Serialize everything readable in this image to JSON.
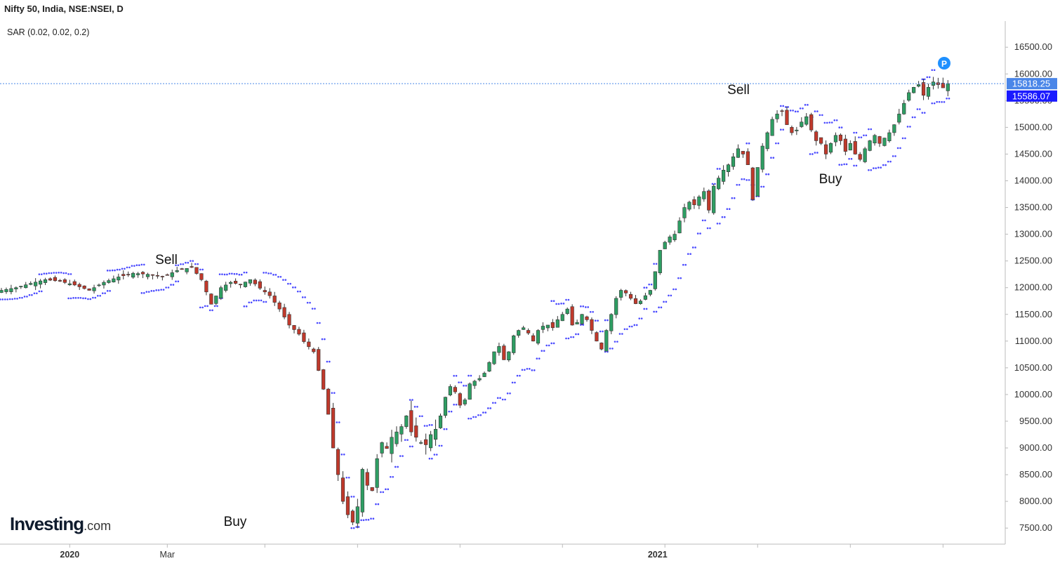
{
  "header": {
    "title": "Nifty 50, India, NSE:NSEI, D",
    "indicator": "SAR (0.02, 0.02, 0.2)"
  },
  "logo": {
    "text": "Investing",
    "suffix": ".com"
  },
  "colors": {
    "up_candle": "#2e9e63",
    "down_candle": "#c0392b",
    "sar_dots": "#4a4aff",
    "price_label_bg": "#4a86e8",
    "sar_label_bg": "#1a1aff",
    "p_badge": "#1e90ff",
    "grid": "#e6e6e6",
    "axis": "#bbbbbb"
  },
  "chart_data": {
    "type": "candlestick",
    "title": "Nifty 50, India, NSE:NSEI, D",
    "indicator": "SAR (0.02, 0.02, 0.2)",
    "ylim": [
      7200,
      16950
    ],
    "yticks": [
      "7500.00",
      "8000.00",
      "8500.00",
      "9000.00",
      "9500.00",
      "10000.00",
      "10500.00",
      "11000.00",
      "11500.00",
      "12000.00",
      "12500.00",
      "13000.00",
      "13500.00",
      "14000.00",
      "14500.00",
      "15000.00",
      "15500.00",
      "16000.00",
      "16500.00"
    ],
    "x_labels": [
      "2020",
      "Mar",
      "2021"
    ],
    "last_price": "15818.25",
    "last_sar": "15586.07",
    "p_badge": "P",
    "annotations": [
      {
        "text": "Sell"
      },
      {
        "text": "Buy"
      },
      {
        "text": "Sell"
      },
      {
        "text": "Buy"
      }
    ],
    "close_path": [
      [
        0,
        11950
      ],
      [
        3,
        12000
      ],
      [
        6,
        12080
      ],
      [
        9,
        12150
      ],
      [
        12,
        12120
      ],
      [
        15,
        12050
      ],
      [
        18,
        11950
      ],
      [
        21,
        12100
      ],
      [
        24,
        12200
      ],
      [
        27,
        12270
      ],
      [
        30,
        12250
      ],
      [
        33,
        12200
      ],
      [
        36,
        12320
      ],
      [
        39,
        12380
      ],
      [
        41,
        12150
      ],
      [
        43,
        11690
      ],
      [
        45,
        12000
      ],
      [
        47,
        12100
      ],
      [
        49,
        12060
      ],
      [
        51,
        12150
      ],
      [
        53,
        11990
      ],
      [
        55,
        11850
      ],
      [
        57,
        11600
      ],
      [
        59,
        11300
      ],
      [
        61,
        11130
      ],
      [
        62,
        10990
      ],
      [
        64,
        10800
      ],
      [
        65,
        10450
      ],
      [
        66,
        10100
      ],
      [
        67,
        9630
      ],
      [
        68,
        9000
      ],
      [
        69,
        8500
      ],
      [
        70,
        8000
      ],
      [
        71,
        7750
      ],
      [
        72,
        7610
      ],
      [
        73,
        7900
      ],
      [
        74,
        8600
      ],
      [
        75,
        8300
      ],
      [
        76,
        8200
      ],
      [
        77,
        8800
      ],
      [
        78,
        9100
      ],
      [
        79,
        8990
      ],
      [
        80,
        9200
      ],
      [
        81,
        9300
      ],
      [
        82,
        9400
      ],
      [
        83,
        9600
      ],
      [
        84,
        9300
      ],
      [
        85,
        9200
      ],
      [
        86,
        9100
      ],
      [
        87,
        9060
      ],
      [
        88,
        9250
      ],
      [
        89,
        9350
      ],
      [
        90,
        9600
      ],
      [
        91,
        9950
      ],
      [
        92,
        10150
      ],
      [
        93,
        10050
      ],
      [
        94,
        9800
      ],
      [
        95,
        9900
      ],
      [
        96,
        10200
      ],
      [
        97,
        10250
      ],
      [
        98,
        10300
      ],
      [
        99,
        10400
      ],
      [
        100,
        10600
      ],
      [
        101,
        10800
      ],
      [
        102,
        10900
      ],
      [
        103,
        10650
      ],
      [
        104,
        10800
      ],
      [
        105,
        11100
      ],
      [
        106,
        11200
      ],
      [
        107,
        11250
      ],
      [
        108,
        11150
      ],
      [
        109,
        11000
      ],
      [
        110,
        11200
      ],
      [
        111,
        11280
      ],
      [
        112,
        11300
      ],
      [
        113,
        11250
      ],
      [
        114,
        11400
      ],
      [
        115,
        11500
      ],
      [
        116,
        11600
      ],
      [
        117,
        11300
      ],
      [
        118,
        11350
      ],
      [
        119,
        11500
      ],
      [
        120,
        11400
      ],
      [
        121,
        11200
      ],
      [
        122,
        11000
      ],
      [
        123,
        10850
      ],
      [
        124,
        11200
      ],
      [
        125,
        11500
      ],
      [
        126,
        11800
      ],
      [
        127,
        11950
      ],
      [
        128,
        11900
      ],
      [
        129,
        11800
      ],
      [
        130,
        11700
      ],
      [
        131,
        11750
      ],
      [
        132,
        11850
      ],
      [
        133,
        11950
      ],
      [
        134,
        12300
      ],
      [
        135,
        12700
      ],
      [
        136,
        12850
      ],
      [
        137,
        12950
      ],
      [
        138,
        13000
      ],
      [
        139,
        13250
      ],
      [
        140,
        13500
      ],
      [
        141,
        13600
      ],
      [
        142,
        13550
      ],
      [
        143,
        13700
      ],
      [
        144,
        13800
      ],
      [
        145,
        13450
      ],
      [
        146,
        13900
      ],
      [
        147,
        14050
      ],
      [
        148,
        14200
      ],
      [
        149,
        14300
      ],
      [
        150,
        14450
      ],
      [
        151,
        14600
      ],
      [
        152,
        14500
      ],
      [
        153,
        14300
      ],
      [
        154,
        13650
      ],
      [
        155,
        14250
      ],
      [
        156,
        14650
      ],
      [
        157,
        14900
      ],
      [
        158,
        15150
      ],
      [
        159,
        15250
      ],
      [
        160,
        15300
      ],
      [
        161,
        15050
      ],
      [
        162,
        14900
      ],
      [
        163,
        14950
      ],
      [
        164,
        15100
      ],
      [
        165,
        15200
      ],
      [
        166,
        14950
      ],
      [
        167,
        14750
      ],
      [
        168,
        14700
      ],
      [
        169,
        14500
      ],
      [
        170,
        14700
      ],
      [
        171,
        14850
      ],
      [
        172,
        14750
      ],
      [
        173,
        14550
      ],
      [
        174,
        14700
      ],
      [
        175,
        14500
      ],
      [
        176,
        14400
      ],
      [
        177,
        14600
      ],
      [
        178,
        14750
      ],
      [
        179,
        14850
      ],
      [
        180,
        14700
      ],
      [
        181,
        14800
      ],
      [
        182,
        14900
      ],
      [
        183,
        15050
      ],
      [
        184,
        15250
      ],
      [
        185,
        15450
      ],
      [
        186,
        15650
      ],
      [
        187,
        15750
      ],
      [
        188,
        15800
      ],
      [
        189,
        15600
      ],
      [
        190,
        15750
      ],
      [
        191,
        15850
      ],
      [
        192,
        15800
      ],
      [
        193,
        15740
      ],
      [
        194,
        15818
      ]
    ],
    "sar_segments": [
      {
        "trend": "up",
        "from": 0,
        "to": 8,
        "start": 11780
      },
      {
        "trend": "down",
        "from": 8,
        "to": 14,
        "start": 12250
      },
      {
        "trend": "up",
        "from": 14,
        "to": 22,
        "start": 11800
      },
      {
        "trend": "down",
        "from": 22,
        "to": 29,
        "start": 12320
      },
      {
        "trend": "up",
        "from": 29,
        "to": 36,
        "start": 11900
      },
      {
        "trend": "down",
        "from": 36,
        "to": 41,
        "start": 12420
      },
      {
        "trend": "up",
        "from": 41,
        "to": 45,
        "start": 11630
      },
      {
        "trend": "down",
        "from": 45,
        "to": 50,
        "start": 12250
      },
      {
        "trend": "up",
        "from": 50,
        "to": 54,
        "start": 11650
      },
      {
        "trend": "down",
        "from": 54,
        "to": 72,
        "start": 12280
      },
      {
        "trend": "up",
        "from": 72,
        "to": 84,
        "start": 7500
      },
      {
        "trend": "down",
        "from": 84,
        "to": 88,
        "start": 9900
      },
      {
        "trend": "up",
        "from": 88,
        "to": 93,
        "start": 8800
      },
      {
        "trend": "down",
        "from": 93,
        "to": 96,
        "start": 10350
      },
      {
        "trend": "up",
        "from": 96,
        "to": 113,
        "start": 9550
      },
      {
        "trend": "down",
        "from": 113,
        "to": 116,
        "start": 11750
      },
      {
        "trend": "up",
        "from": 116,
        "to": 119,
        "start": 11050
      },
      {
        "trend": "down",
        "from": 119,
        "to": 124,
        "start": 11650
      },
      {
        "trend": "up",
        "from": 124,
        "to": 132,
        "start": 10800
      },
      {
        "trend": "down",
        "from": 132,
        "to": 134,
        "start": 12000
      },
      {
        "trend": "up",
        "from": 134,
        "to": 145,
        "start": 11550
      },
      {
        "trend": "down",
        "from": 145,
        "to": 147,
        "start": 13800
      },
      {
        "trend": "up",
        "from": 147,
        "to": 153,
        "start": 13200
      },
      {
        "trend": "down",
        "from": 153,
        "to": 154,
        "start": 14700
      },
      {
        "trend": "up",
        "from": 154,
        "to": 160,
        "start": 13650
      },
      {
        "trend": "down",
        "from": 160,
        "to": 166,
        "start": 15400
      },
      {
        "trend": "up",
        "from": 166,
        "to": 167,
        "start": 14500
      },
      {
        "trend": "down",
        "from": 167,
        "to": 172,
        "start": 15300
      },
      {
        "trend": "up",
        "from": 172,
        "to": 175,
        "start": 14300
      },
      {
        "trend": "down",
        "from": 175,
        "to": 178,
        "start": 14900
      },
      {
        "trend": "up",
        "from": 178,
        "to": 189,
        "start": 14200
      },
      {
        "trend": "down",
        "from": 189,
        "to": 191,
        "start": 15900
      },
      {
        "trend": "up",
        "from": 191,
        "to": 195,
        "start": 15450
      }
    ]
  }
}
